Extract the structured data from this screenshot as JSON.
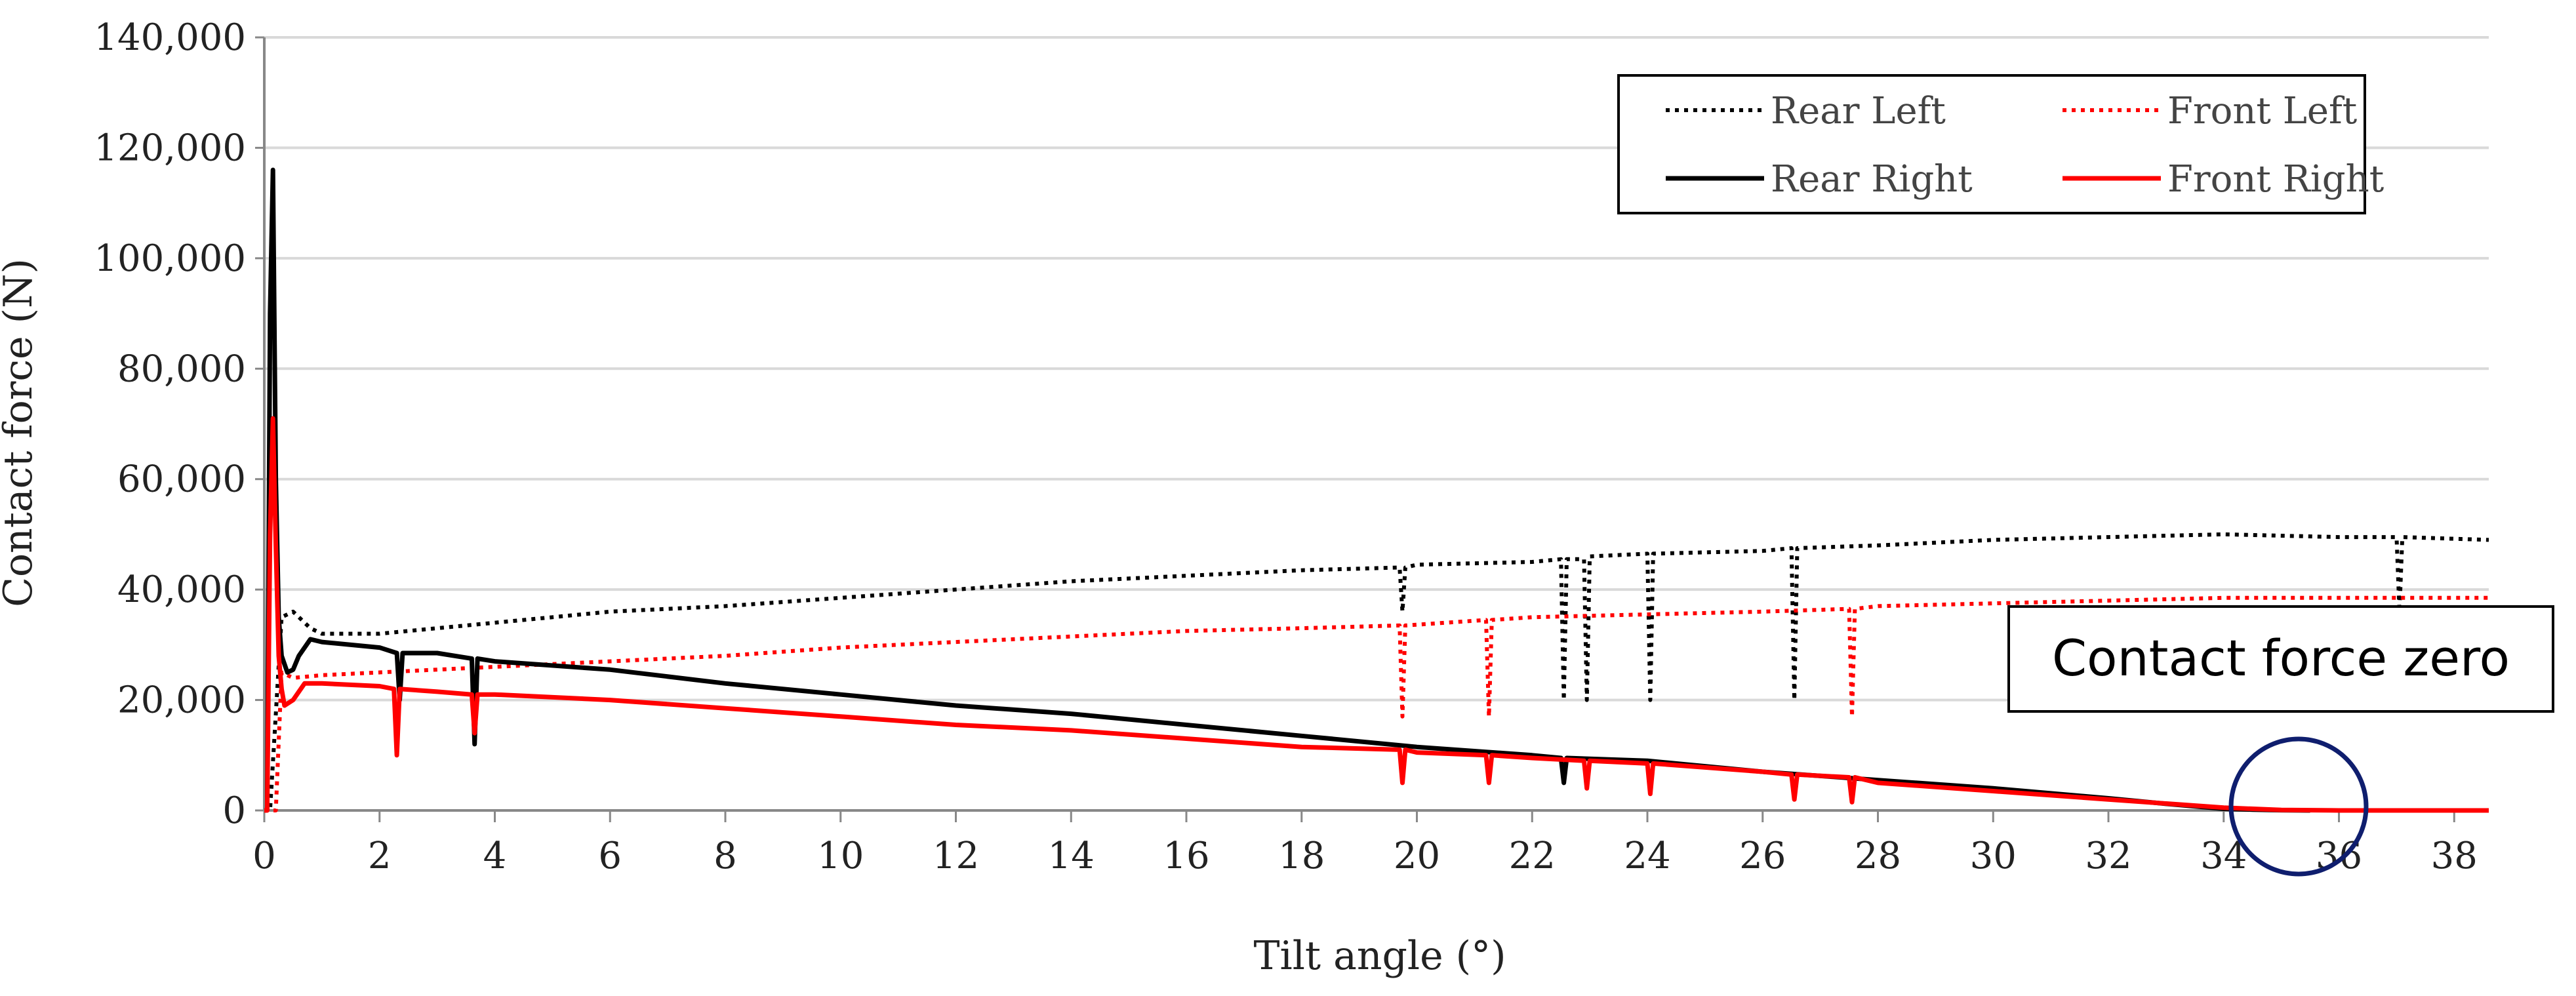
{
  "chart_data": {
    "type": "line",
    "title": "",
    "xlabel": "Tilt angle (°)",
    "ylabel": "Contact force (N)",
    "xlim": [
      0,
      38.6
    ],
    "ylim": [
      0,
      140000
    ],
    "xticks": [
      0,
      2,
      4,
      6,
      8,
      10,
      12,
      14,
      16,
      18,
      20,
      22,
      24,
      26,
      28,
      30,
      32,
      34,
      36,
      38
    ],
    "xtick_labels": [
      "0",
      "2",
      "4",
      "6",
      "8",
      "10",
      "12",
      "14",
      "16",
      "18",
      "20",
      "22",
      "24",
      "26",
      "28",
      "30",
      "32",
      "34",
      "36",
      "38"
    ],
    "yticks": [
      0,
      20000,
      40000,
      60000,
      80000,
      100000,
      120000,
      140000
    ],
    "ytick_labels": [
      "0",
      "20,000",
      "40,000",
      "60,000",
      "80,000",
      "100,000",
      "120,000",
      "140,000"
    ],
    "grid": "horizontal",
    "legend_position": "top-right",
    "series": [
      {
        "name": "Rear Left",
        "color": "#000000",
        "style": "dotted",
        "x": [
          0,
          0.1,
          0.3,
          0.5,
          0.8,
          1,
          2,
          3,
          4,
          5,
          6,
          8,
          10,
          12,
          14,
          16,
          18,
          19.7,
          19.75,
          19.8,
          20,
          22,
          22.5,
          22.55,
          22.6,
          22.9,
          22.95,
          23,
          24,
          24.05,
          24.1,
          26,
          26.5,
          26.55,
          26.6,
          28,
          30,
          32,
          34,
          36,
          37,
          37.05,
          37.1,
          38.6
        ],
        "y": [
          0,
          0,
          35000,
          36000,
          33000,
          32000,
          32000,
          33000,
          34000,
          35000,
          36000,
          37000,
          38500,
          40000,
          41500,
          42500,
          43500,
          44000,
          36000,
          44000,
          44500,
          45000,
          45500,
          20000,
          45500,
          45500,
          20000,
          46000,
          46500,
          20000,
          46500,
          47000,
          47500,
          20000,
          47500,
          48000,
          49000,
          49500,
          50000,
          49500,
          49500,
          36000,
          49500,
          49000
        ]
      },
      {
        "name": "Front Left",
        "color": "#ff0000",
        "style": "dotted",
        "x": [
          0,
          0.1,
          0.2,
          0.3,
          0.5,
          1,
          2,
          4,
          6,
          8,
          10,
          12,
          14,
          16,
          18,
          19.7,
          19.75,
          19.8,
          21.2,
          21.25,
          21.3,
          22,
          24,
          26,
          27.5,
          27.55,
          27.6,
          28,
          30,
          32,
          34,
          36,
          38.6
        ],
        "y": [
          0,
          0,
          0,
          25000,
          24000,
          24500,
          25000,
          26000,
          27000,
          28000,
          29500,
          30500,
          31500,
          32500,
          33000,
          33500,
          17000,
          33500,
          34500,
          17000,
          34500,
          35000,
          35500,
          36000,
          36500,
          17000,
          36500,
          37000,
          37500,
          38000,
          38500,
          38500,
          38500
        ]
      },
      {
        "name": "Rear Right",
        "color": "#000000",
        "style": "solid",
        "x": [
          0.05,
          0.1,
          0.15,
          0.2,
          0.25,
          0.3,
          0.4,
          0.5,
          0.6,
          0.8,
          1,
          2,
          2.3,
          2.35,
          2.4,
          3,
          3.6,
          3.65,
          3.7,
          4,
          6,
          8,
          10,
          12,
          14,
          16,
          18,
          20,
          22,
          22.5,
          22.55,
          22.6,
          24,
          26,
          28,
          30,
          32,
          33,
          34,
          34.5,
          35,
          35.5
        ],
        "y": [
          0,
          90000,
          116000,
          60000,
          35000,
          28000,
          25000,
          25500,
          28000,
          31000,
          30500,
          29500,
          28500,
          20000,
          28500,
          28500,
          27500,
          12000,
          27500,
          27000,
          25500,
          23000,
          21000,
          19000,
          17500,
          15500,
          13500,
          11500,
          10000,
          9500,
          5000,
          9500,
          9000,
          7000,
          5500,
          4000,
          2200,
          1200,
          300,
          150,
          50,
          0
        ]
      },
      {
        "name": "Front Right",
        "color": "#ff0000",
        "style": "solid",
        "x": [
          0,
          0.05,
          0.1,
          0.15,
          0.2,
          0.25,
          0.3,
          0.35,
          0.5,
          0.7,
          1,
          2,
          2.25,
          2.3,
          2.35,
          3,
          3.6,
          3.65,
          3.7,
          4,
          6,
          8,
          10,
          12,
          14,
          16,
          18,
          19.7,
          19.75,
          19.8,
          20,
          21.2,
          21.25,
          21.3,
          22,
          22.9,
          22.95,
          23,
          24,
          24.05,
          24.1,
          26,
          26.5,
          26.55,
          26.6,
          27.5,
          27.55,
          27.6,
          28,
          30,
          32,
          34,
          35,
          36,
          38.6
        ],
        "y": [
          0,
          0,
          50000,
          71000,
          48000,
          28000,
          22000,
          19000,
          20000,
          23000,
          23000,
          22500,
          22000,
          10000,
          22000,
          21500,
          21000,
          14000,
          21000,
          21000,
          20000,
          18500,
          17000,
          15500,
          14500,
          13000,
          11500,
          11000,
          5000,
          11000,
          10500,
          10000,
          5000,
          10000,
          9500,
          9000,
          4000,
          9000,
          8500,
          3000,
          8500,
          7000,
          6500,
          2000,
          6500,
          6000,
          1500,
          6000,
          5000,
          3500,
          2000,
          500,
          100,
          0,
          0
        ]
      }
    ],
    "annotations": [
      {
        "text": "Contact force zero",
        "target_x": 35.3,
        "target_y": 0
      }
    ]
  }
}
